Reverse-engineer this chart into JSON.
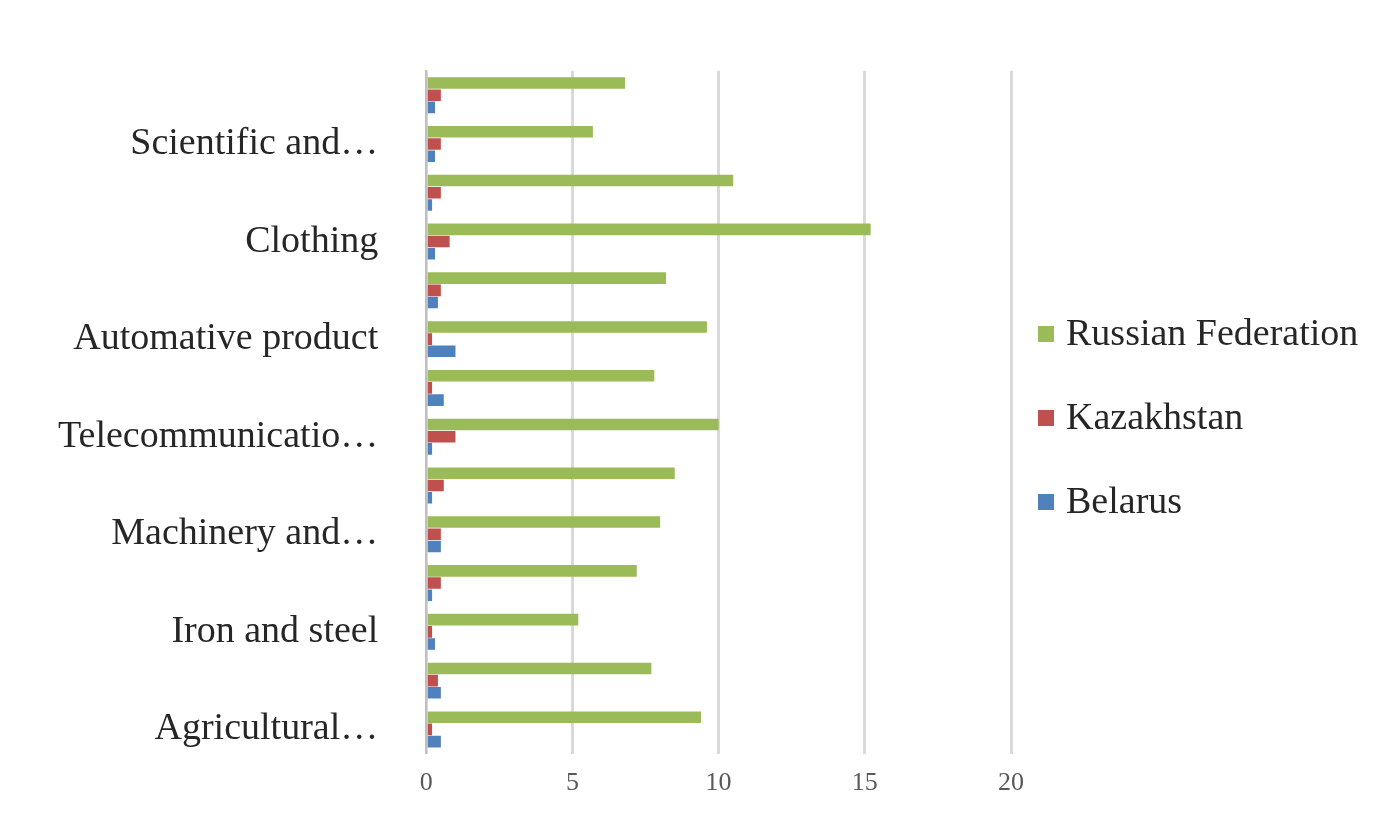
{
  "chart_data": {
    "type": "bar",
    "orientation": "horizontal",
    "categories": [
      null,
      "Scientific and…",
      null,
      "Clothing",
      null,
      "Automative product",
      null,
      "Telecommunicatio…",
      null,
      "Machinery and…",
      null,
      "Iron and steel",
      null,
      "Agricultural…"
    ],
    "series": [
      {
        "name": "Russian Federation",
        "color": "#9bbb59",
        "values": [
          6.8,
          5.7,
          10.5,
          15.2,
          8.2,
          9.6,
          7.8,
          10.0,
          8.5,
          8.0,
          7.2,
          5.2,
          7.7,
          9.4
        ]
      },
      {
        "name": "Kazakhstan",
        "color": "#c0504d",
        "values": [
          0.5,
          0.5,
          0.5,
          0.8,
          0.5,
          0.2,
          0.2,
          1.0,
          0.6,
          0.5,
          0.5,
          0.2,
          0.4,
          0.2
        ]
      },
      {
        "name": "Belarus",
        "color": "#4f81bd",
        "values": [
          0.3,
          0.3,
          0.2,
          0.3,
          0.4,
          1.0,
          0.6,
          0.2,
          0.2,
          0.5,
          0.2,
          0.3,
          0.5,
          0.5
        ]
      }
    ],
    "xlim": [
      0,
      20
    ],
    "xticks": [
      0,
      5,
      10,
      15,
      20
    ],
    "grid": "x",
    "legend": "right"
  }
}
